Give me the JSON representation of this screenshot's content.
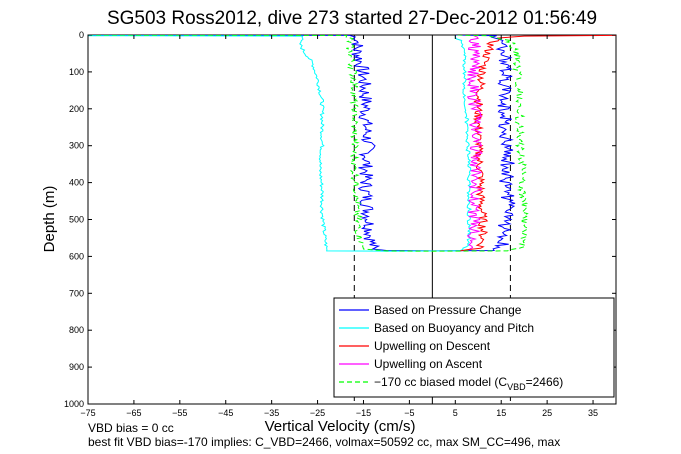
{
  "chart_data": {
    "type": "line",
    "title": "SG503 Ross2012, dive 273 started 27-Dec-2012 01:56:49",
    "xlabel": "Vertical Velocity (cm/s)",
    "ylabel": "Depth (m)",
    "xlim": [
      -75,
      40
    ],
    "ylim": [
      0,
      1000
    ],
    "y_reversed": true,
    "xticks": [
      -75,
      -65,
      -55,
      -45,
      -35,
      -25,
      -15,
      -5,
      5,
      15,
      25,
      35
    ],
    "yticks": [
      0,
      100,
      200,
      300,
      400,
      500,
      600,
      700,
      800,
      900,
      1000
    ],
    "grid": false,
    "legend_position": "bottom-right",
    "reference_lines": {
      "vertical_solid_x": 0,
      "vertical_dashed_x": [
        -17,
        17
      ],
      "dashed_ymax": 1000
    },
    "series": [
      {
        "name": "Based on Pressure Change",
        "color": "#0000ff",
        "style": "solid",
        "points": [
          [
            -75,
            0
          ],
          [
            -18,
            1
          ],
          [
            -16,
            10
          ],
          [
            -16.5,
            40
          ],
          [
            -15.5,
            80
          ],
          [
            -15,
            120
          ],
          [
            -14.5,
            180
          ],
          [
            -14.5,
            240
          ],
          [
            -14,
            300
          ],
          [
            -14.5,
            360
          ],
          [
            -14.5,
            420
          ],
          [
            -14,
            480
          ],
          [
            -13.5,
            540
          ],
          [
            -13,
            580
          ],
          [
            -10,
            584
          ],
          [
            0,
            585
          ],
          [
            13,
            584
          ],
          [
            15,
            575
          ],
          [
            16,
            555
          ],
          [
            15.5,
            520
          ],
          [
            16.5,
            460
          ],
          [
            16,
            400
          ],
          [
            16.5,
            340
          ],
          [
            16,
            280
          ],
          [
            16,
            220
          ],
          [
            15.5,
            160
          ],
          [
            16,
            100
          ],
          [
            15.5,
            50
          ],
          [
            15,
            15
          ],
          [
            14,
            2
          ],
          [
            5,
            0
          ]
        ]
      },
      {
        "name": "Based on Buoyancy and Pitch",
        "color": "#00ffff",
        "style": "solid",
        "points": [
          [
            -75,
            2
          ],
          [
            -28,
            3
          ],
          [
            -29,
            20
          ],
          [
            -28,
            45
          ],
          [
            -27,
            60
          ],
          [
            -26,
            80
          ],
          [
            -25,
            120
          ],
          [
            -24,
            180
          ],
          [
            -24,
            240
          ],
          [
            -24,
            300
          ],
          [
            -24.5,
            360
          ],
          [
            -24,
            420
          ],
          [
            -24,
            480
          ],
          [
            -23.5,
            540
          ],
          [
            -23,
            585
          ],
          [
            -10,
            586
          ],
          [
            6,
            585
          ],
          [
            8,
            570
          ],
          [
            8,
            520
          ],
          [
            8,
            460
          ],
          [
            8,
            400
          ],
          [
            8,
            340
          ],
          [
            7.5,
            280
          ],
          [
            7.5,
            220
          ],
          [
            7,
            160
          ],
          [
            7,
            100
          ],
          [
            7,
            50
          ],
          [
            6,
            15
          ],
          [
            5,
            2
          ]
        ]
      },
      {
        "name": "Upwelling on Descent",
        "color": "#ff0000",
        "style": "solid",
        "points": [
          [
            40,
            1
          ],
          [
            20,
            3
          ],
          [
            14,
            8
          ],
          [
            13,
            20
          ],
          [
            12,
            50
          ],
          [
            11,
            90
          ],
          [
            10.5,
            140
          ],
          [
            10,
            200
          ],
          [
            10,
            260
          ],
          [
            10,
            320
          ],
          [
            10.5,
            380
          ],
          [
            10.5,
            440
          ],
          [
            11,
            500
          ],
          [
            11,
            550
          ],
          [
            10.5,
            578
          ],
          [
            6,
            585
          ]
        ]
      },
      {
        "name": "Upwelling on Ascent",
        "color": "#ff00ff",
        "style": "solid",
        "points": [
          [
            8,
            580
          ],
          [
            9,
            565
          ],
          [
            9,
            520
          ],
          [
            9,
            460
          ],
          [
            9.5,
            400
          ],
          [
            9.5,
            340
          ],
          [
            9.5,
            280
          ],
          [
            9.5,
            220
          ],
          [
            9,
            160
          ],
          [
            9,
            100
          ],
          [
            9,
            50
          ],
          [
            9.5,
            20
          ],
          [
            9,
            2
          ]
        ]
      },
      {
        "name": "-170 cc biased model (C_VBD=2466)",
        "color": "#00ff00",
        "style": "dashed",
        "points": [
          [
            -75,
            0
          ],
          [
            -19,
            1
          ],
          [
            -18,
            10
          ],
          [
            -18,
            40
          ],
          [
            -17.5,
            80
          ],
          [
            -17,
            120
          ],
          [
            -17,
            180
          ],
          [
            -17,
            240
          ],
          [
            -17,
            300
          ],
          [
            -17,
            360
          ],
          [
            -16.5,
            420
          ],
          [
            -16.5,
            480
          ],
          [
            -16,
            540
          ],
          [
            -15,
            580
          ],
          [
            -10,
            585
          ],
          [
            0,
            586
          ],
          [
            17,
            585
          ],
          [
            20,
            570
          ],
          [
            20,
            520
          ],
          [
            20,
            460
          ],
          [
            19.5,
            400
          ],
          [
            19.5,
            340
          ],
          [
            19,
            280
          ],
          [
            19,
            220
          ],
          [
            19,
            160
          ],
          [
            18.5,
            100
          ],
          [
            18.5,
            50
          ],
          [
            17,
            15
          ],
          [
            12,
            2
          ],
          [
            5,
            0
          ]
        ]
      }
    ]
  },
  "legend": {
    "items": [
      "Based on Pressure Change",
      "Based on Buoyancy and Pitch",
      "Upwelling on Descent",
      "Upwelling on Ascent"
    ],
    "model_label_prefix": "−170 cc biased model (C",
    "model_label_sub": "VBD",
    "model_label_suffix": "=2466)"
  },
  "notes": {
    "line1": "VBD bias = 0 cc",
    "line2": "best fit VBD bias=-170 implies: C_VBD=2466, volmax=50592 cc, max SM_CC=496, max"
  }
}
